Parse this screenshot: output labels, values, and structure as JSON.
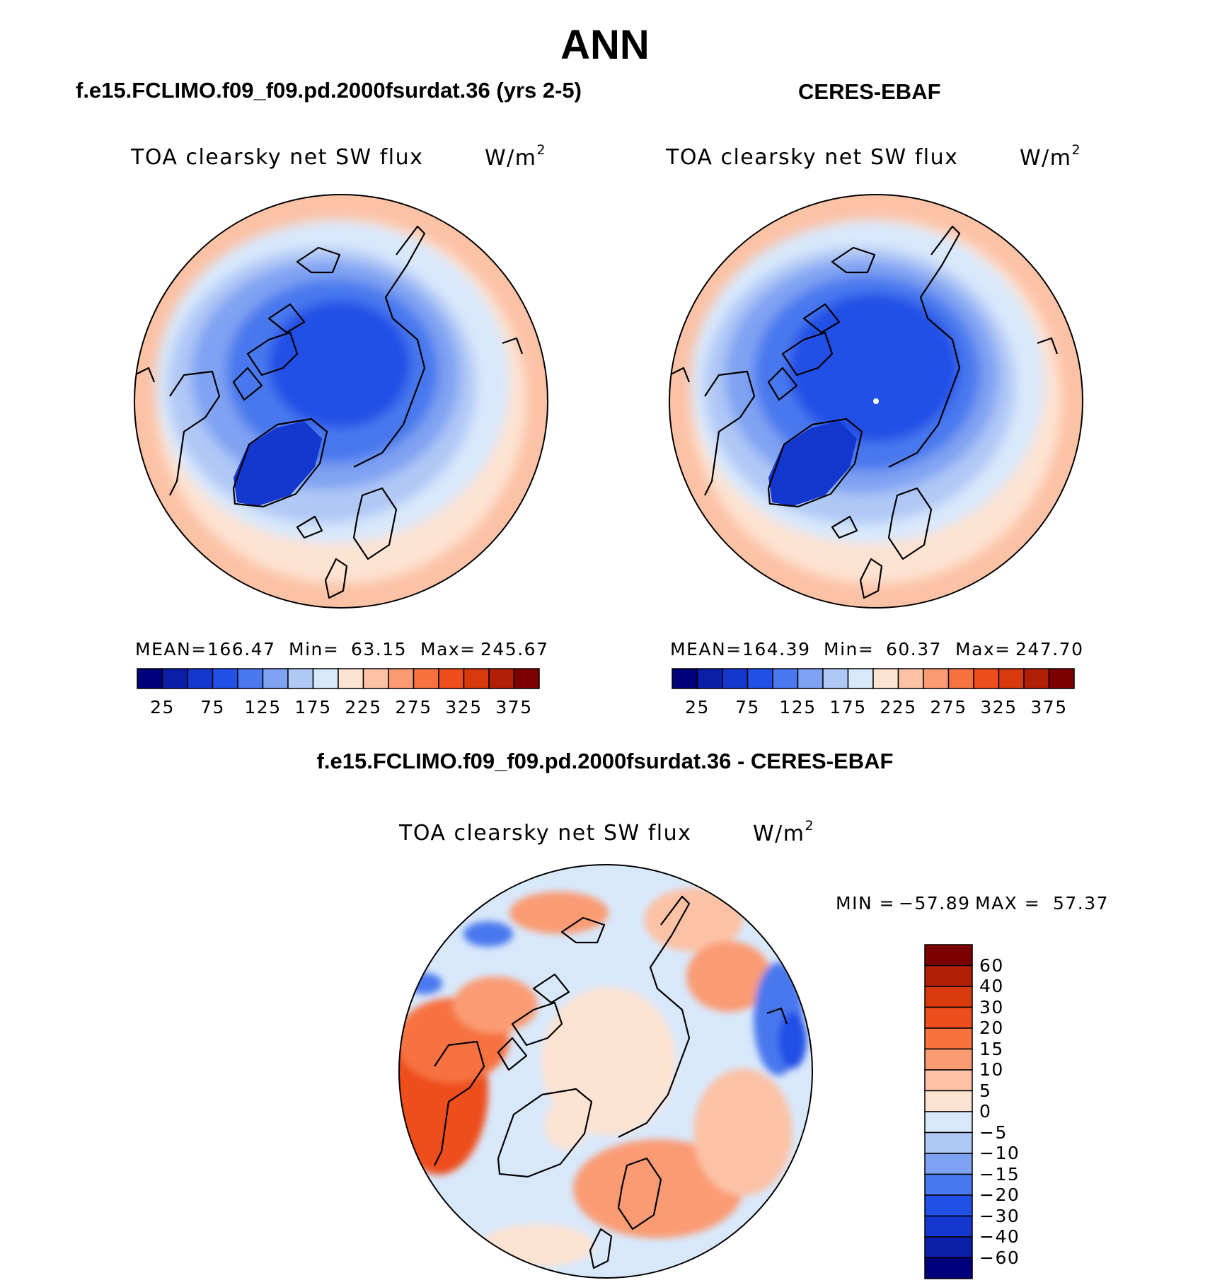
{
  "header": {
    "main_title": "ANN",
    "left_title": "f.e15.FCLIMO.f09_f09.pd.2000fsurdat.36 (yrs 2-5)",
    "right_title": "CERES-EBAF",
    "diff_title": "f.e15.FCLIMO.f09_f09.pd.2000fsurdat.36 - CERES-EBAF"
  },
  "variable": "TOA clearsky net SW flux",
  "units": {
    "base": "W/m",
    "exp": "2"
  },
  "panels": {
    "model": {
      "mean_label": "MEAN=",
      "mean": "166.47",
      "min_label": "Min=",
      "min": "63.15",
      "max_label": "Max=",
      "max": "245.67"
    },
    "obs": {
      "mean_label": "MEAN=",
      "mean": "164.39",
      "min_label": "Min=",
      "min": "60.37",
      "max_label": "Max=",
      "max": "247.70"
    },
    "diff": {
      "min_label": "MIN =",
      "min": "−57.89",
      "max_label": "MAX =",
      "max": "57.37"
    }
  },
  "colorbars": {
    "abs_ticks": [
      "25",
      "75",
      "125",
      "175",
      "225",
      "275",
      "325",
      "375"
    ],
    "abs_colors": [
      "#00007a",
      "#0a1ea8",
      "#1437cd",
      "#2050e6",
      "#4a78ee",
      "#7fa2f2",
      "#b0c8f6",
      "#d8e8fb",
      "#fde3d2",
      "#fcc2a6",
      "#fa9b73",
      "#f7723f",
      "#ee4d1c",
      "#d83a0e",
      "#b21f07",
      "#7d0000"
    ],
    "diff_ticks": [
      "60",
      "40",
      "30",
      "20",
      "15",
      "10",
      "5",
      "0",
      "−5",
      "−10",
      "−15",
      "−20",
      "−30",
      "−40",
      "−60"
    ],
    "diff_colors": [
      "#7d0000",
      "#b21f07",
      "#d83a0e",
      "#ee4d1c",
      "#f7723f",
      "#fa9b73",
      "#fcc2a6",
      "#fde3d2",
      "#d8e8fb",
      "#b0c8f6",
      "#7fa2f2",
      "#4a78ee",
      "#2050e6",
      "#1437cd",
      "#0a1ea8",
      "#00007a"
    ]
  },
  "map": {
    "projection": "north polar stereographic"
  }
}
